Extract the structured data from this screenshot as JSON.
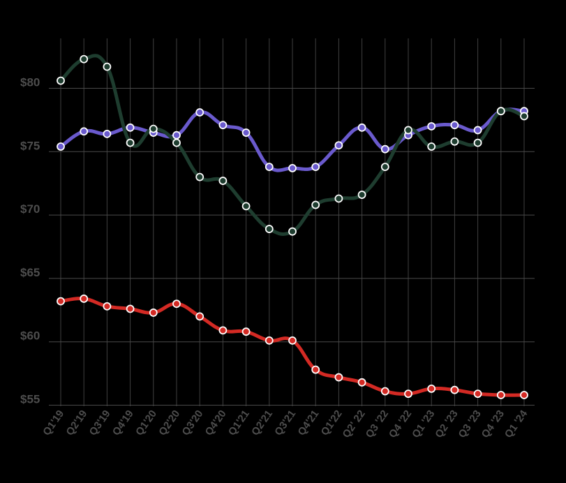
{
  "chart_data": {
    "type": "line",
    "title": "",
    "xlabel": "",
    "ylabel": "",
    "ylim": [
      53,
      84
    ],
    "y_ticks": [
      55,
      60,
      65,
      70,
      75,
      80
    ],
    "y_tick_labels": [
      "$55",
      "$60",
      "$65",
      "$70",
      "$75",
      "$80"
    ],
    "grid": true,
    "categories": [
      "Q1'19",
      "Q2'19",
      "Q3'19",
      "Q4'19",
      "Q1'20",
      "Q2'20",
      "Q3'20",
      "Q4'20",
      "Q1'21",
      "Q2'21",
      "Q3'21",
      "Q4'21",
      "Q1'22",
      "Q2' 22",
      "Q3 '22",
      "Q4 '22",
      "Q1 '23",
      "Q2 '23",
      "Q3 '23",
      "Q4 '23",
      "Q1 '24"
    ],
    "series": [
      {
        "color": "#6a5acd",
        "values": [
          75.4,
          76.6,
          76.4,
          76.9,
          76.5,
          76.3,
          78.1,
          77.1,
          76.5,
          73.8,
          73.7,
          73.8,
          75.5,
          76.9,
          75.2,
          76.3,
          77.0,
          77.1,
          76.7,
          78.2,
          78.2
        ]
      },
      {
        "color": "#1e3d2f",
        "values": [
          80.6,
          82.3,
          81.7,
          75.7,
          76.8,
          75.7,
          73.0,
          72.7,
          70.7,
          68.9,
          68.7,
          70.8,
          71.3,
          71.6,
          73.8,
          76.7,
          75.4,
          75.8,
          75.7,
          78.2,
          77.8
        ]
      },
      {
        "color": "#d42a24",
        "values": [
          63.2,
          63.4,
          62.8,
          62.6,
          62.3,
          63.0,
          62.0,
          60.9,
          60.8,
          60.1,
          60.1,
          57.8,
          57.2,
          56.8,
          56.1,
          55.9,
          56.3,
          56.2,
          55.9,
          55.8,
          55.8
        ]
      }
    ]
  }
}
